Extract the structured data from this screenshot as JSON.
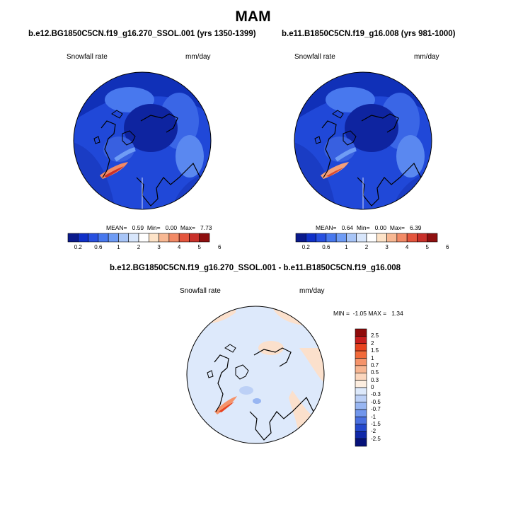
{
  "title": "MAM",
  "panels": [
    {
      "title": "b.e12.BG1850C5CN.f19_g16.270_SSOL.001 (yrs 1350-1399)",
      "variable": "Snowfall rate",
      "units": "mm/day",
      "stats": "MEAN=   0.59  Min=   0.00  Max=   7.73"
    },
    {
      "title": "b.e11.B1850C5CN.f19_g16.008 (yrs 981-1000)",
      "variable": "Snowfall rate",
      "units": "mm/day",
      "stats": "MEAN=   0.64  Min=   0.00  Max=   6.39"
    }
  ],
  "colorbar_top": {
    "labels": [
      "0.2",
      "0.6",
      "1",
      "2",
      "3",
      "4",
      "5",
      "6"
    ],
    "colors": [
      "#0a1a8c",
      "#1030c8",
      "#2850e0",
      "#4878ee",
      "#6f9cf5",
      "#a8c5f7",
      "#d8e6fb",
      "#ffffff",
      "#fde3c8",
      "#f8b893",
      "#f28a66",
      "#e4553d",
      "#c9302a",
      "#8f1010"
    ]
  },
  "difference": {
    "title": "b.e12.BG1850C5CN.f19_g16.270_SSOL.001 - b.e11.B1850C5CN.f19_g16.008",
    "variable": "Snowfall rate",
    "units": "mm/day",
    "minmax": "MIN =  -1.05 MAX =   1.34"
  },
  "colorbar_diff": {
    "labels": [
      "2.5",
      "2",
      "1.5",
      "1",
      "0.7",
      "0.5",
      "0.3",
      "0",
      "-0.3",
      "-0.5",
      "-0.7",
      "-1",
      "-1.5",
      "-2",
      "-2.5"
    ],
    "colors": [
      "#8f0a0a",
      "#c81e1e",
      "#e8431f",
      "#f26a3a",
      "#f5936a",
      "#f7b591",
      "#fbd6bd",
      "#fdeee0",
      "#dde9fb",
      "#bcd0f6",
      "#98b6f2",
      "#7196ec",
      "#4a70e0",
      "#2448cc",
      "#1028a8",
      "#06127a"
    ]
  }
}
